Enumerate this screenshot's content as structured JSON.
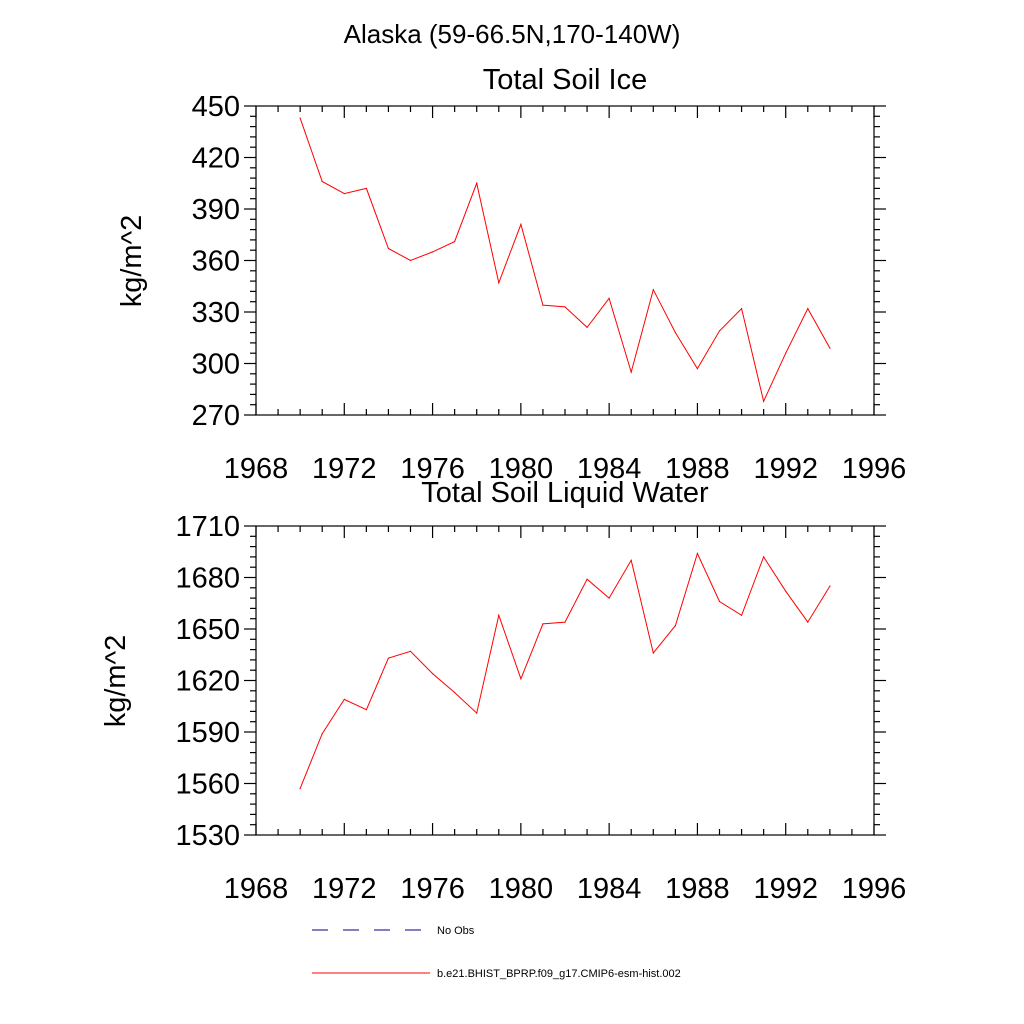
{
  "figure_title": "Alaska (59-66.5N,170-140W)",
  "chart_data": [
    {
      "type": "line",
      "title": "Total Soil Ice",
      "xlabel": "",
      "ylabel": "kg/m^2",
      "xlim": [
        1968,
        1996
      ],
      "ylim": [
        270,
        450
      ],
      "xticks": [
        1968,
        1972,
        1976,
        1980,
        1984,
        1988,
        1992,
        1996
      ],
      "yticks": [
        270,
        300,
        330,
        360,
        390,
        420,
        450
      ],
      "xtick_labels": [
        "1968",
        "1972",
        "1976",
        "1980",
        "1984",
        "1988",
        "1992",
        "1996"
      ],
      "ytick_labels": [
        "270",
        "300",
        "330",
        "360",
        "390",
        "420",
        "450"
      ],
      "grid": false,
      "series": [
        {
          "name": "b.e21.BHIST_BPRP.f09_g17.CMIP6-esm-hist.002",
          "color": "#ff0000",
          "x": [
            1970,
            1971,
            1972,
            1973,
            1974,
            1975,
            1976,
            1977,
            1978,
            1979,
            1980,
            1981,
            1982,
            1983,
            1984,
            1985,
            1986,
            1987,
            1988,
            1989,
            1990,
            1991,
            1992,
            1993,
            1994
          ],
          "y": [
            443,
            406,
            399,
            402,
            367,
            360,
            365,
            371,
            405,
            347,
            381,
            334,
            333,
            321,
            338,
            295,
            343,
            318,
            297,
            319,
            332,
            278,
            306,
            332,
            309
          ]
        }
      ]
    },
    {
      "type": "line",
      "title": "Total Soil Liquid Water",
      "xlabel": "",
      "ylabel": "kg/m^2",
      "xlim": [
        1968,
        1996
      ],
      "ylim": [
        1530,
        1710
      ],
      "xticks": [
        1968,
        1972,
        1976,
        1980,
        1984,
        1988,
        1992,
        1996
      ],
      "yticks": [
        1530,
        1560,
        1590,
        1620,
        1650,
        1680,
        1710
      ],
      "xtick_labels": [
        "1968",
        "1972",
        "1976",
        "1980",
        "1984",
        "1988",
        "1992",
        "1996"
      ],
      "ytick_labels": [
        "1530",
        "1560",
        "1590",
        "1620",
        "1650",
        "1680",
        "1710"
      ],
      "grid": false,
      "series": [
        {
          "name": "b.e21.BHIST_BPRP.f09_g17.CMIP6-esm-hist.002",
          "color": "#ff0000",
          "x": [
            1970,
            1971,
            1972,
            1973,
            1974,
            1975,
            1976,
            1977,
            1978,
            1979,
            1980,
            1981,
            1982,
            1983,
            1984,
            1985,
            1986,
            1987,
            1988,
            1989,
            1990,
            1991,
            1992,
            1993,
            1994
          ],
          "y": [
            1557,
            1589,
            1609,
            1603,
            1633,
            1637,
            1624,
            1613,
            1601,
            1658,
            1621,
            1653,
            1654,
            1679,
            1668,
            1690,
            1636,
            1652,
            1694,
            1666,
            1658,
            1692,
            1672,
            1654,
            1675
          ]
        }
      ]
    }
  ],
  "legend": {
    "placement": "bottom",
    "items": [
      {
        "label": "No Obs",
        "style": "dashed",
        "color": "#000080"
      },
      {
        "label": "b.e21.BHIST_BPRP.f09_g17.CMIP6-esm-hist.002",
        "style": "solid",
        "color": "#ff0000"
      }
    ]
  }
}
